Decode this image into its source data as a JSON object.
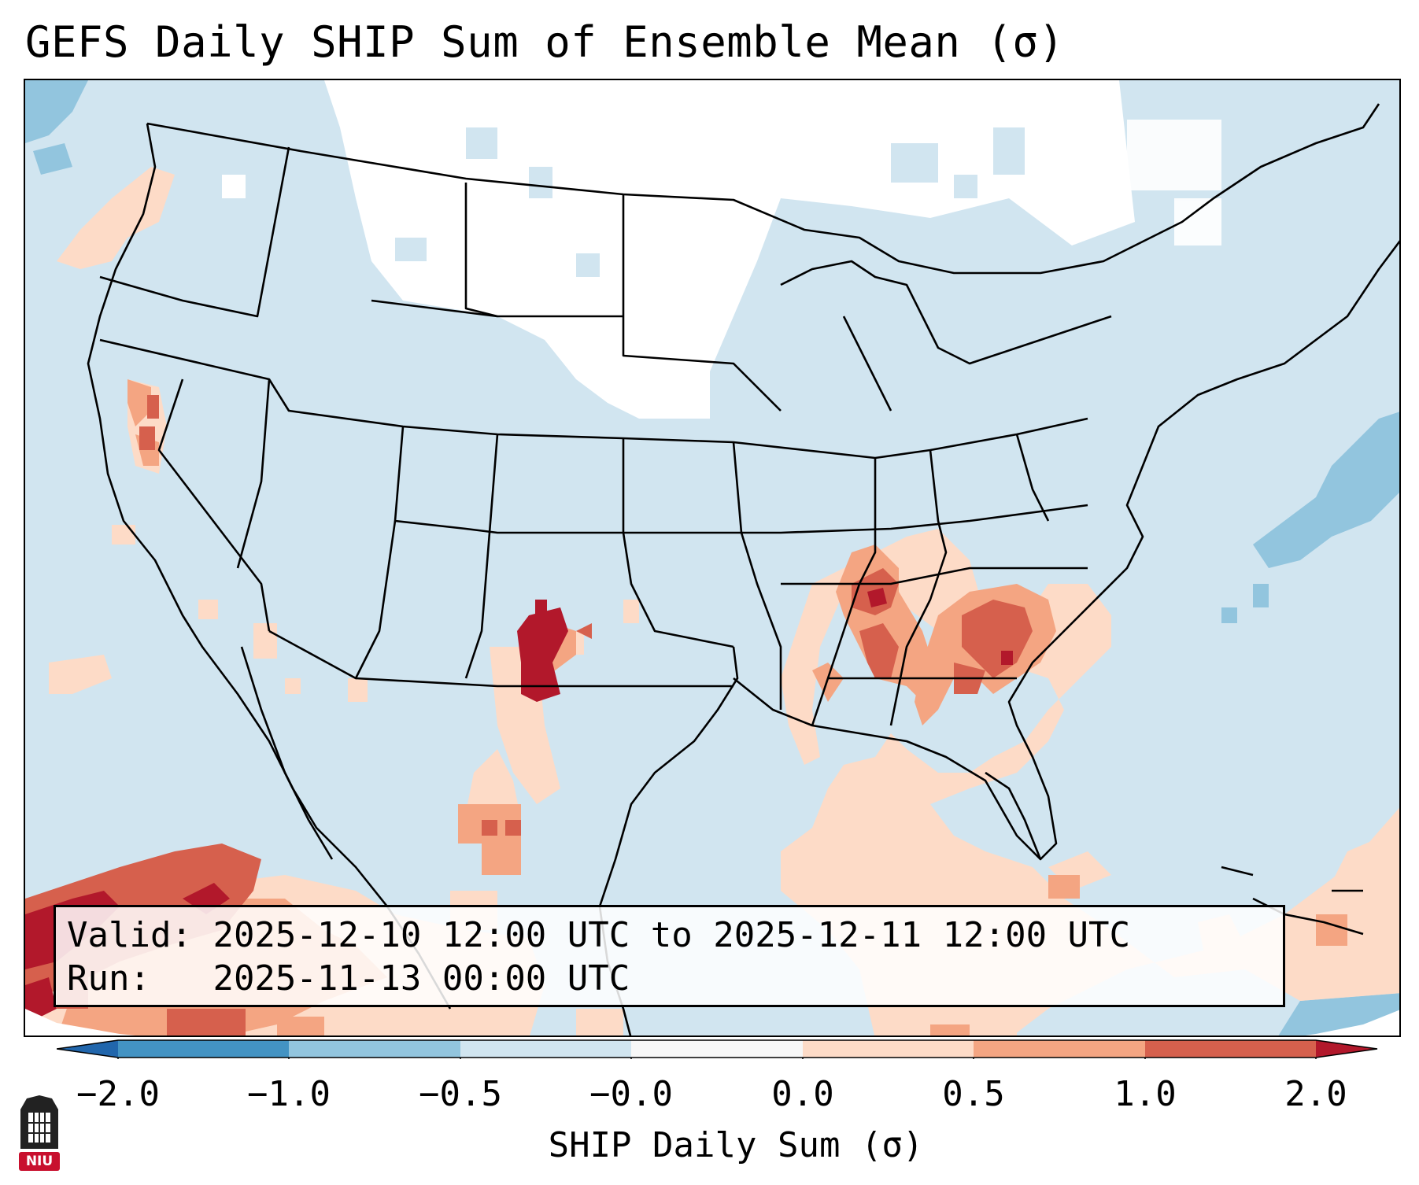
{
  "title": "GEFS Daily SHIP Sum of Ensemble Mean (σ)",
  "info": {
    "valid_label": "Valid:",
    "valid_value": "2025-12-10 12:00 UTC to 2025-12-11 12:00 UTC",
    "run_label": "Run:",
    "run_value": "2025-11-13 00:00 UTC"
  },
  "colorbar": {
    "title": "SHIP Daily Sum (σ)",
    "ticks": [
      "−2.0",
      "−1.0",
      "−0.5",
      "−0.0",
      "0.0",
      "0.5",
      "1.0",
      "2.0"
    ],
    "bins": [
      {
        "range": "< -2.0",
        "color": "#2166ac"
      },
      {
        "range": "-2.0 to -1.0",
        "color": "#4393c3"
      },
      {
        "range": "-1.0 to -0.5",
        "color": "#92c5de"
      },
      {
        "range": "-0.5 to -0.0",
        "color": "#d1e5f0"
      },
      {
        "range": "-0.0 to 0.0",
        "color": "#f7f7f7"
      },
      {
        "range": "0.0 to 0.5",
        "color": "#fddbc7"
      },
      {
        "range": "0.5 to 1.0",
        "color": "#f4a582"
      },
      {
        "range": "1.0 to 2.0",
        "color": "#d6604d"
      },
      {
        "range": "> 2.0",
        "color": "#b2182b"
      }
    ]
  },
  "logo": {
    "text": "NIU",
    "color": "#c8102e"
  }
}
